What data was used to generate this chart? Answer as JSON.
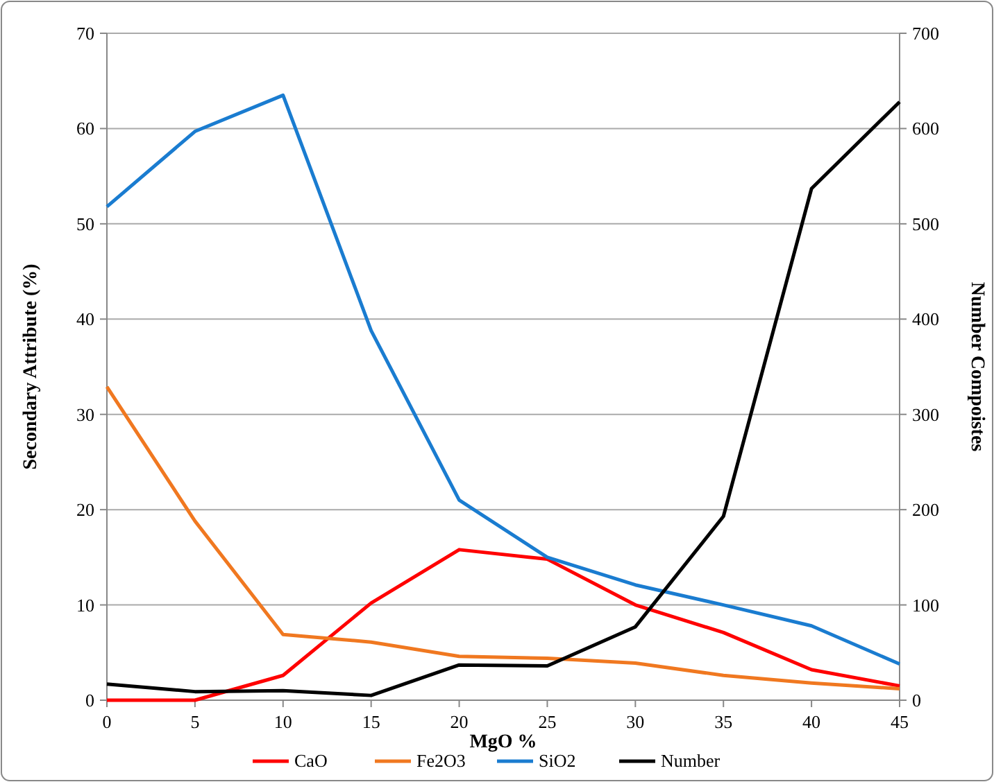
{
  "chart_data": {
    "type": "line",
    "xlabel": "MgO %",
    "ylabel": "Secondary Attribute (%)",
    "y2label": "Number Compoistes",
    "x": [
      0,
      5,
      10,
      15,
      20,
      25,
      30,
      35,
      40,
      45
    ],
    "xlim": [
      0,
      45
    ],
    "xticks": [
      0,
      5,
      10,
      15,
      20,
      25,
      30,
      35,
      40,
      45
    ],
    "ylim": [
      0,
      70
    ],
    "yticks": [
      0,
      10,
      20,
      30,
      40,
      50,
      60,
      70
    ],
    "y2lim": [
      0,
      700
    ],
    "y2ticks": [
      0,
      100,
      200,
      300,
      400,
      500,
      600,
      700
    ],
    "grid": "y",
    "legend": "bottom",
    "marker": "none",
    "line_style": "solid",
    "series": [
      {
        "name": "CaO",
        "color": "#ff0000",
        "values": [
          0,
          0,
          2.6,
          10.2,
          15.8,
          14.8,
          10,
          7.1,
          3.2,
          1.5
        ]
      },
      {
        "name": "Fe2O3",
        "color": "#f07820",
        "values": [
          32.9,
          18.8,
          6.9,
          6.1,
          4.6,
          4.4,
          3.9,
          2.6,
          1.8,
          1.2
        ]
      },
      {
        "name": "SiO2",
        "color": "#1a7cd0",
        "values": [
          51.8,
          59.7,
          63.5,
          38.8,
          21,
          15,
          12.1,
          10,
          7.8,
          3.8
        ]
      },
      {
        "name": "Number",
        "color": "#000000",
        "axis": "y2",
        "values": [
          17,
          9,
          10,
          5,
          37,
          36,
          77,
          193,
          537,
          628
        ]
      }
    ]
  }
}
